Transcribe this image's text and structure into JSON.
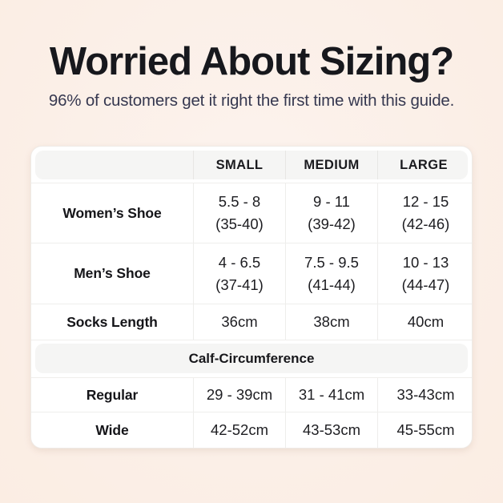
{
  "page": {
    "title": "Worried About Sizing?",
    "subtitle": "96% of customers get it right the first time with this guide."
  },
  "colors": {
    "background": "#fbefe7",
    "card": "#ffffff",
    "band": "#f5f5f4",
    "title_text": "#17181d",
    "subtitle_text": "#363850",
    "grid_line": "#efeeec"
  },
  "table": {
    "columns": [
      "",
      "SMALL",
      "MEDIUM",
      "LARGE"
    ],
    "shoe_rows": [
      {
        "label": "Women’s Shoe",
        "cells": [
          {
            "main": "5.5 - 8",
            "sub": "(35-40)"
          },
          {
            "main": "9 - 11",
            "sub": "(39-42)"
          },
          {
            "main": "12 - 15",
            "sub": "(42-46)"
          }
        ]
      },
      {
        "label": "Men’s Shoe",
        "cells": [
          {
            "main": "4 - 6.5",
            "sub": "(37-41)"
          },
          {
            "main": "7.5 - 9.5",
            "sub": "(41-44)"
          },
          {
            "main": "10 - 13",
            "sub": "(44-47)"
          }
        ]
      }
    ],
    "socks_row": {
      "label": "Socks Length",
      "cells": [
        "36cm",
        "38cm",
        "40cm"
      ]
    },
    "calf_section_title": "Calf-Circumference",
    "calf_rows": [
      {
        "label": "Regular",
        "cells": [
          "29 - 39cm",
          "31 - 41cm",
          "33-43cm"
        ]
      },
      {
        "label": "Wide",
        "cells": [
          "42-52cm",
          "43-53cm",
          "45-55cm"
        ]
      }
    ]
  }
}
